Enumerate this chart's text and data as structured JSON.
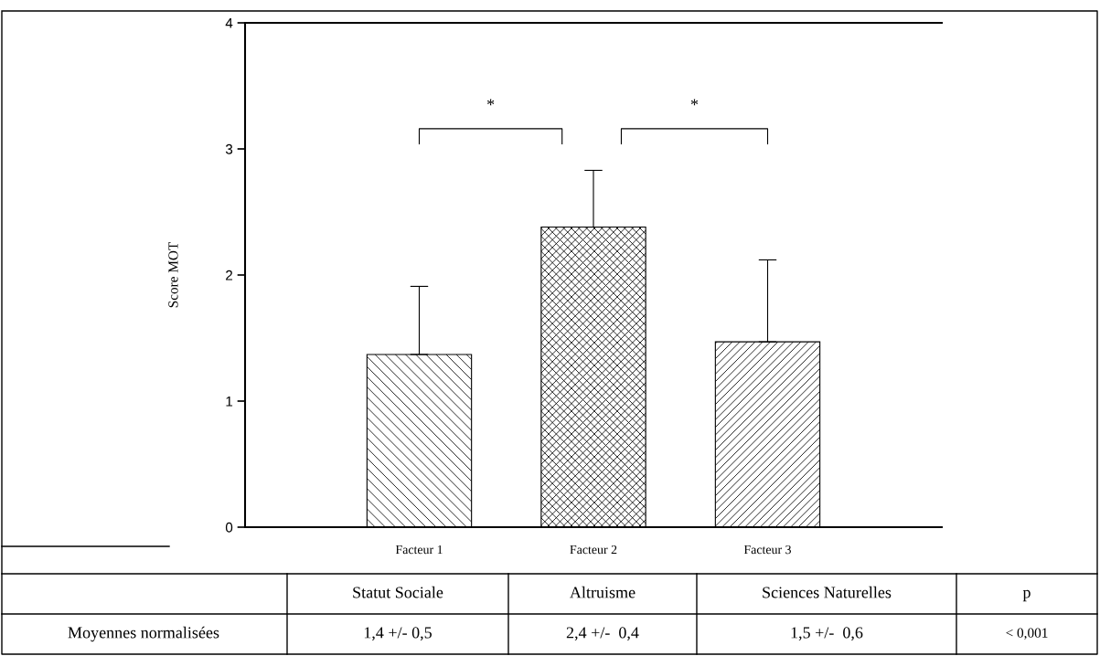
{
  "chart_data": {
    "type": "bar",
    "ylabel": "Score MOT",
    "categories": [
      "Facteur 1",
      "Facteur 2",
      "Facteur 3"
    ],
    "values": [
      1.37,
      2.38,
      1.47
    ],
    "errors": [
      [
        1.37,
        1.91
      ],
      [
        2.38,
        2.83
      ],
      [
        1.47,
        2.12
      ]
    ],
    "color": "#000000",
    "ylim": [
      0,
      4
    ],
    "yticks": [
      0,
      1,
      2,
      3,
      4
    ],
    "grid": false,
    "legend": false,
    "annotations": [
      "*",
      "*",
      "Statut Sociale",
      "Altruisme",
      "Sciences Naturelles",
      "p",
      "Moyennes normalisées",
      "1,4 +/- 0,5",
      "2,4 +/-  0,4",
      "1,5 +/-  0,6",
      "< 0,001"
    ]
  }
}
